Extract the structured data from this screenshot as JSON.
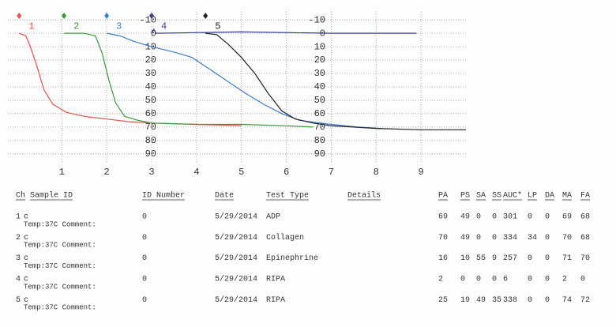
{
  "chart_data": {
    "type": "line",
    "y_inverted": true,
    "grid": true,
    "xlim": [
      -0.2,
      10
    ],
    "xticks": [
      1,
      2,
      3,
      4,
      5,
      6,
      7,
      8,
      9
    ],
    "ylim": [
      -16,
      96
    ],
    "yticks": [
      -10,
      0,
      10,
      20,
      30,
      40,
      50,
      60,
      70,
      80,
      90
    ],
    "series": [
      {
        "name": "1",
        "color": "#e5534b",
        "x": [
          0.05,
          0.2,
          0.3,
          0.45,
          0.6,
          0.8,
          1.1,
          1.5,
          2,
          2.5,
          3,
          4,
          5
        ],
        "values": [
          0,
          2,
          10,
          25,
          42,
          53,
          59,
          62,
          64,
          66,
          67,
          68,
          69
        ]
      },
      {
        "name": "2",
        "color": "#3a9a3a",
        "x": [
          1.05,
          1.5,
          1.75,
          1.9,
          2.05,
          2.2,
          2.4,
          2.7,
          3,
          4,
          5,
          6,
          6.6
        ],
        "values": [
          0,
          0,
          2,
          15,
          35,
          52,
          62,
          65,
          67,
          68,
          68,
          69,
          70
        ]
      },
      {
        "name": "3",
        "color": "#3a7fd0",
        "x": [
          2,
          2.3,
          2.6,
          3,
          3.5,
          3.9,
          4.3,
          4.7,
          5.1,
          5.5,
          5.9,
          6.3,
          7,
          7.6,
          8.1
        ],
        "values": [
          0,
          2,
          6,
          10,
          14,
          18,
          27,
          36,
          45,
          53,
          60,
          65,
          68,
          70,
          71
        ]
      },
      {
        "name": "4",
        "color": "#3b3b8f",
        "x": [
          3,
          3.05,
          3.1,
          5,
          7,
          8.9
        ],
        "values": [
          0,
          -3,
          0,
          -1,
          0,
          0
        ]
      },
      {
        "name": "5",
        "color": "#222222",
        "x": [
          4.2,
          4.45,
          4.7,
          5,
          5.3,
          5.6,
          5.9,
          6.2,
          6.6,
          7,
          8,
          9,
          10
        ],
        "values": [
          0,
          1,
          8,
          18,
          30,
          45,
          58,
          64,
          67,
          69,
          71,
          72,
          72
        ]
      }
    ]
  },
  "table": {
    "headers": [
      "Ch",
      "Sample ID",
      "ID Number",
      "Date",
      "Test Type",
      "Details",
      "PA",
      "PS",
      "SA",
      "SS",
      "AUC*",
      "LP",
      "DA",
      "MA",
      "FA"
    ],
    "rows": [
      {
        "ch": "1",
        "sample": "c",
        "note": "Temp:37C  Comment:",
        "id": "0",
        "date": "5/29/2014",
        "test": "ADP",
        "values": [
          69,
          49,
          0,
          0,
          301,
          0,
          0,
          69,
          68
        ]
      },
      {
        "ch": "2",
        "sample": "c",
        "note": "Temp:37C  Comment:",
        "id": "0",
        "date": "5/29/2014",
        "test": "Collagen",
        "values": [
          70,
          49,
          0,
          0,
          334,
          34,
          0,
          70,
          68
        ]
      },
      {
        "ch": "3",
        "sample": "c",
        "note": "Temp:37C  Comment:",
        "id": "0",
        "date": "5/29/2014",
        "test": "Epinephrine",
        "values": [
          16,
          10,
          55,
          9,
          257,
          0,
          0,
          71,
          70
        ]
      },
      {
        "ch": "4",
        "sample": "c",
        "note": "Temp:37C  Comment:",
        "id": "0",
        "date": "5/29/2014",
        "test": "RIPA",
        "values": [
          2,
          0,
          0,
          0,
          6,
          0,
          0,
          2,
          0
        ]
      },
      {
        "ch": "5",
        "sample": "c",
        "note": "Temp:37C  Comment:",
        "id": "0",
        "date": "5/29/2014",
        "test": "RIPA",
        "values": [
          25,
          19,
          49,
          35,
          338,
          0,
          0,
          74,
          72
        ]
      }
    ]
  }
}
